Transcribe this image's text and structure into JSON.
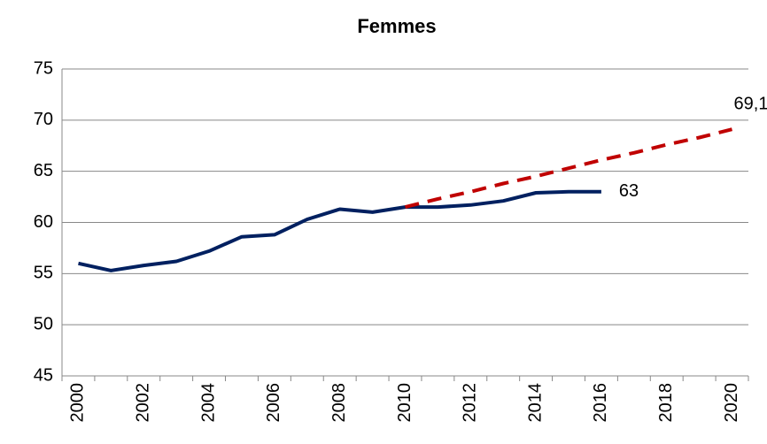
{
  "chart_data": {
    "type": "line",
    "title": "Femmes",
    "categories": [
      "2000",
      null,
      "2002",
      null,
      "2004",
      null,
      "2006",
      null,
      "2008",
      null,
      "2010",
      null,
      "2012",
      null,
      "2014",
      null,
      "2016",
      null,
      "2018",
      null,
      "2020"
    ],
    "series": [
      {
        "color": "#002060",
        "dashed": false,
        "values": [
          56,
          55.3,
          55.8,
          56.2,
          57.2,
          58.6,
          58.8,
          60.3,
          61.3,
          61,
          61.5,
          61.5,
          61.7,
          62.1,
          62.9,
          63,
          63,
          null,
          null,
          null,
          null
        ],
        "value_labels": [
          null,
          null,
          null,
          null,
          null,
          null,
          null,
          null,
          null,
          null,
          null,
          null,
          null,
          null,
          null,
          null,
          "63",
          null,
          null,
          null,
          null
        ]
      },
      {
        "color": "#c00000",
        "dashed": true,
        "values": [
          null,
          null,
          null,
          null,
          null,
          null,
          null,
          null,
          null,
          null,
          61.5,
          62.3,
          63,
          63.8,
          64.5,
          65.3,
          66.1,
          66.8,
          67.6,
          68.3,
          69.1
        ],
        "value_labels": [
          null,
          null,
          null,
          null,
          null,
          null,
          null,
          null,
          null,
          null,
          null,
          null,
          null,
          null,
          null,
          null,
          null,
          null,
          null,
          null,
          "69,1"
        ]
      }
    ],
    "ylim": [
      45,
      75
    ],
    "yticks": [
      45,
      50,
      55,
      60,
      65,
      70,
      75
    ],
    "grid": true
  }
}
